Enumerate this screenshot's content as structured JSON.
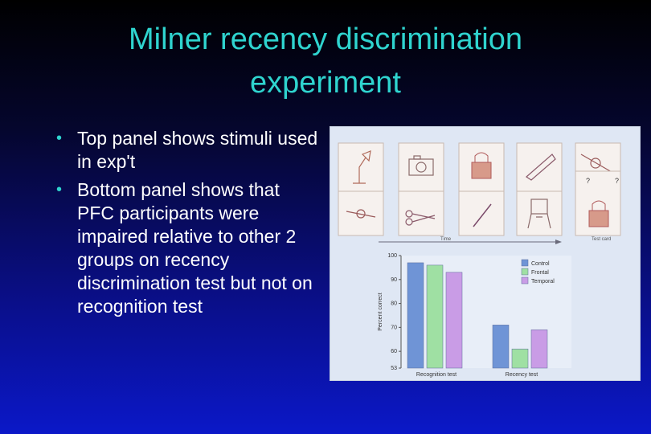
{
  "slide": {
    "title_line1": "Milner recency discrimination",
    "title_line2": "experiment",
    "bullets": [
      "Top panel shows stimuli used in exp't",
      "Bottom panel shows that PFC participants were impaired relative to other 2 groups on recency discrimination test but not on recognition test"
    ],
    "bullet_icon": "bullet-dot",
    "accent_color": "#2fd4cf"
  },
  "figure": {
    "time_label": "Time",
    "test_card_label": "Test card",
    "question_mark": "?",
    "stimuli_top": [
      "lamp-icon",
      "camera-icon",
      "padlock-icon",
      "blade-icon",
      "watch-icon"
    ],
    "stimuli_bottom": [
      "watch-icon",
      "scissors-icon",
      "pen-icon",
      "chair-icon",
      "padlock-icon"
    ]
  },
  "chart_data": {
    "type": "bar",
    "categories": [
      "Recognition test",
      "Recency test"
    ],
    "series": [
      {
        "name": "Control",
        "values": [
          97,
          71
        ],
        "color": "#6f94d6"
      },
      {
        "name": "Frontal",
        "values": [
          96,
          61
        ],
        "color": "#9fe0a3"
      },
      {
        "name": "Temporal",
        "values": [
          93,
          69
        ],
        "color": "#c99ce6"
      }
    ],
    "ylabel": "Percent correct",
    "ylim": [
      53,
      100
    ],
    "yticks": [
      "100",
      "90",
      "80",
      "70",
      "60",
      "53"
    ],
    "legend": "top-right",
    "grid": false
  }
}
